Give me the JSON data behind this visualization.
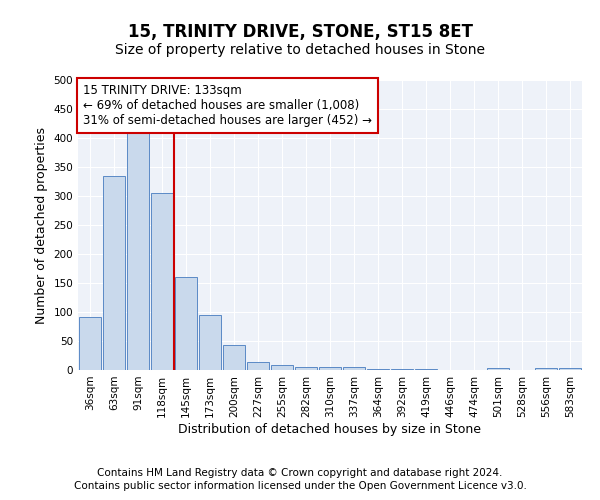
{
  "title": "15, TRINITY DRIVE, STONE, ST15 8ET",
  "subtitle": "Size of property relative to detached houses in Stone",
  "xlabel": "Distribution of detached houses by size in Stone",
  "ylabel": "Number of detached properties",
  "categories": [
    "36sqm",
    "63sqm",
    "91sqm",
    "118sqm",
    "145sqm",
    "173sqm",
    "200sqm",
    "227sqm",
    "255sqm",
    "282sqm",
    "310sqm",
    "337sqm",
    "364sqm",
    "392sqm",
    "419sqm",
    "446sqm",
    "474sqm",
    "501sqm",
    "528sqm",
    "556sqm",
    "583sqm"
  ],
  "values": [
    91,
    335,
    408,
    305,
    160,
    95,
    43,
    13,
    8,
    5,
    5,
    5,
    1,
    1,
    1,
    0,
    0,
    3,
    0,
    3,
    3
  ],
  "bar_color": "#c9d9ec",
  "bar_edge_color": "#5a8ac6",
  "vline_color": "#cc0000",
  "annotation_text": "15 TRINITY DRIVE: 133sqm\n← 69% of detached houses are smaller (1,008)\n31% of semi-detached houses are larger (452) →",
  "annotation_box_color": "#ffffff",
  "annotation_box_edge_color": "#cc0000",
  "ylim": [
    0,
    500
  ],
  "yticks": [
    0,
    50,
    100,
    150,
    200,
    250,
    300,
    350,
    400,
    450,
    500
  ],
  "footer_line1": "Contains HM Land Registry data © Crown copyright and database right 2024.",
  "footer_line2": "Contains public sector information licensed under the Open Government Licence v3.0.",
  "bg_color": "#eef2f9",
  "title_fontsize": 12,
  "subtitle_fontsize": 10,
  "axis_label_fontsize": 9,
  "tick_fontsize": 7.5,
  "annotation_fontsize": 8.5,
  "footer_fontsize": 7.5
}
